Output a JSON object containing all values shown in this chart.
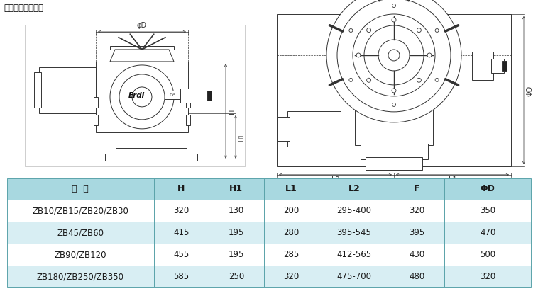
{
  "title": "外形及外形尺寸表",
  "table_headers": [
    "型  号",
    "H",
    "H1",
    "L1",
    "L2",
    "F",
    "ΦD"
  ],
  "table_rows": [
    [
      "ZB10/ZB15/ZB20/ZB30",
      "320",
      "130",
      "200",
      "295-400",
      "320",
      "350"
    ],
    [
      "ZB45/ZB60",
      "415",
      "195",
      "280",
      "395-545",
      "395",
      "470"
    ],
    [
      "ZB90/ZB120",
      "455",
      "195",
      "285",
      "412-565",
      "430",
      "500"
    ],
    [
      "ZB180/ZB250/ZB350",
      "585",
      "250",
      "320",
      "475-700",
      "480",
      "320"
    ]
  ],
  "header_bg": "#a8d8e0",
  "row_bg_odd": "#ffffff",
  "row_bg_even": "#d8eef3",
  "border_color": "#5ba3aa",
  "header_text_color": "#1a1a1a",
  "row_text_color": "#1a1a1a",
  "title_color": "#000000",
  "bg_color": "#ffffff",
  "lc": "#333333",
  "figure_width": 7.58,
  "figure_height": 4.11,
  "dpi": 100
}
